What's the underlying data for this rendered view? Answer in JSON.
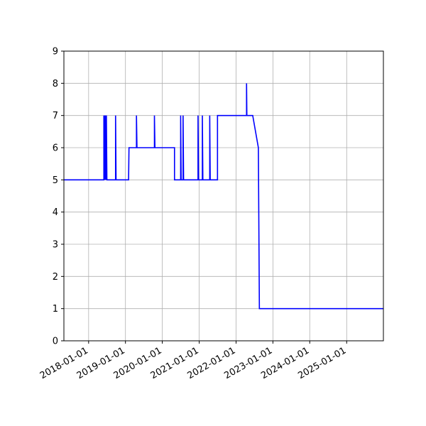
{
  "chart_data": {
    "type": "line",
    "title": "",
    "xlabel": "",
    "ylabel": "",
    "grid": true,
    "xlim": [
      "2017-05-01",
      "2025-12-31"
    ],
    "ylim": [
      0,
      9
    ],
    "x_ticks": [
      "2018-01-01",
      "2019-01-01",
      "2020-01-01",
      "2021-01-01",
      "2022-01-01",
      "2023-01-01",
      "2024-01-01",
      "2025-01-01"
    ],
    "y_ticks": [
      0,
      1,
      2,
      3,
      4,
      5,
      6,
      7,
      8,
      9
    ],
    "series": [
      {
        "color": "#0000ff",
        "points": [
          [
            "2017-05-01",
            5
          ],
          [
            "2018-06-01",
            5
          ],
          [
            "2018-06-01",
            7
          ],
          [
            "2018-06-05",
            5
          ],
          [
            "2018-06-10",
            7
          ],
          [
            "2018-06-14",
            5
          ],
          [
            "2018-06-18",
            7
          ],
          [
            "2018-06-22",
            5
          ],
          [
            "2018-06-26",
            7
          ],
          [
            "2018-07-01",
            5
          ],
          [
            "2018-09-25",
            5
          ],
          [
            "2018-09-25",
            7
          ],
          [
            "2018-09-30",
            5
          ],
          [
            "2019-02-01",
            5
          ],
          [
            "2019-02-05",
            6
          ],
          [
            "2019-04-20",
            6
          ],
          [
            "2019-04-20",
            7
          ],
          [
            "2019-04-25",
            6
          ],
          [
            "2019-10-15",
            6
          ],
          [
            "2019-10-15",
            7
          ],
          [
            "2019-10-20",
            6
          ],
          [
            "2020-05-01",
            6
          ],
          [
            "2020-05-01",
            5
          ],
          [
            "2020-07-01",
            5
          ],
          [
            "2020-07-01",
            7
          ],
          [
            "2020-07-06",
            5
          ],
          [
            "2020-07-25",
            5
          ],
          [
            "2020-07-25",
            7
          ],
          [
            "2020-07-30",
            5
          ],
          [
            "2020-12-20",
            5
          ],
          [
            "2020-12-20",
            7
          ],
          [
            "2020-12-25",
            5
          ],
          [
            "2021-02-01",
            5
          ],
          [
            "2021-02-01",
            7
          ],
          [
            "2021-02-06",
            5
          ],
          [
            "2021-04-15",
            5
          ],
          [
            "2021-04-15",
            7
          ],
          [
            "2021-04-20",
            5
          ],
          [
            "2021-07-01",
            5
          ],
          [
            "2021-07-01",
            7
          ],
          [
            "2022-04-15",
            7
          ],
          [
            "2022-04-15",
            8
          ],
          [
            "2022-04-18",
            7
          ],
          [
            "2022-06-15",
            7
          ],
          [
            "2022-08-10",
            6
          ],
          [
            "2022-08-20",
            1
          ],
          [
            "2025-12-31",
            1
          ]
        ]
      }
    ]
  }
}
